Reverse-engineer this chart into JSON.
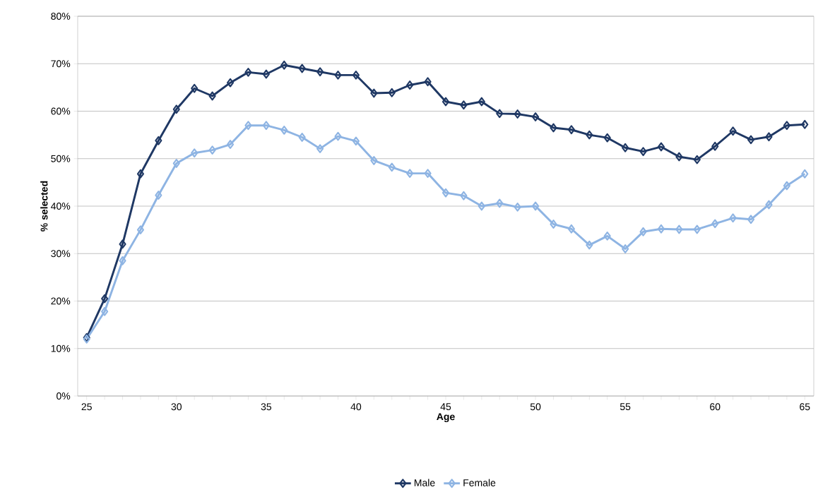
{
  "chart_data": {
    "type": "line",
    "xlabel": "Age",
    "ylabel": "% selected",
    "categories": [
      "25",
      null,
      null,
      null,
      null,
      "30",
      null,
      null,
      null,
      null,
      "35",
      null,
      null,
      null,
      null,
      "40",
      null,
      null,
      null,
      null,
      "45",
      null,
      null,
      null,
      null,
      "50",
      null,
      null,
      null,
      null,
      "55",
      null,
      null,
      null,
      null,
      "60",
      null,
      null,
      null,
      null,
      "65"
    ],
    "series": [
      {
        "name": "Male",
        "color": "#1f3864",
        "values": [
          12.3,
          20.5,
          32,
          46.8,
          53.8,
          60.4,
          64.8,
          63.2,
          66,
          68.2,
          67.8,
          69.7,
          69,
          68.3,
          67.6,
          67.6,
          63.8,
          63.9,
          65.5,
          66.2,
          62,
          61.3,
          62,
          59.5,
          59.4,
          58.8,
          56.5,
          56.1,
          55,
          54.4,
          52.3,
          51.5,
          52.5,
          50.4,
          49.8,
          52.6,
          55.8,
          54,
          54.6,
          57,
          57.2
        ]
      },
      {
        "name": "Female",
        "color": "#8eb4e3",
        "values": [
          12,
          17.8,
          28.5,
          35,
          42.3,
          49,
          51.2,
          51.8,
          53,
          57,
          57,
          56,
          54.5,
          52.1,
          54.7,
          53.7,
          49.6,
          48.2,
          46.9,
          46.9,
          42.8,
          42.2,
          40,
          40.6,
          39.8,
          40,
          36.2,
          35.2,
          31.8,
          33.7,
          31,
          34.6,
          35.2,
          35.1,
          35.1,
          36.3,
          37.5,
          37.2,
          40.3,
          44.3,
          46.8
        ]
      }
    ],
    "ylim": [
      0,
      80
    ],
    "yticks": [
      {
        "value": 0,
        "label": "0%"
      },
      {
        "value": 10,
        "label": "10%"
      },
      {
        "value": 20,
        "label": "20%"
      },
      {
        "value": 30,
        "label": "30%"
      },
      {
        "value": 40,
        "label": "40%"
      },
      {
        "value": 50,
        "label": "50%"
      },
      {
        "value": 60,
        "label": "60%"
      },
      {
        "value": 70,
        "label": "70%"
      },
      {
        "value": 80,
        "label": "80%"
      }
    ],
    "grid": "y",
    "legend": "bottom",
    "marker": "diamond",
    "line_style": "solid"
  }
}
